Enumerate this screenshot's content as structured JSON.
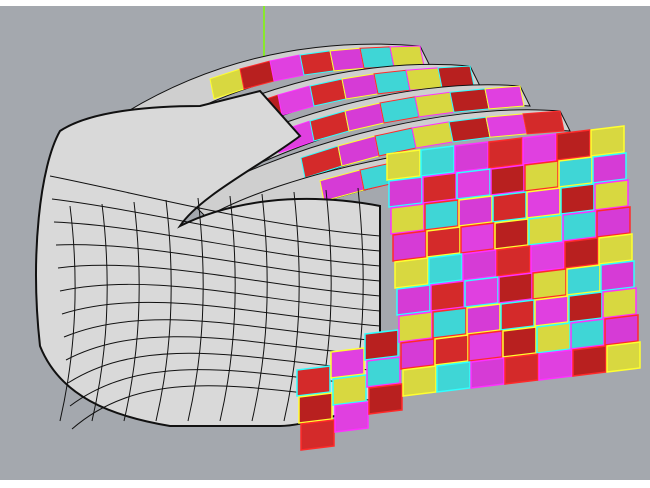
{
  "viewport": {
    "background": "#a4a8ae",
    "surface_color": "#d9d9d9",
    "edge_color": "#111111",
    "axis_color": "#7fff00"
  },
  "panel_palette": [
    "#d42a2a",
    "#d63bd6",
    "#3fd6d6",
    "#d8d840",
    "#b8201f",
    "#e040e0"
  ],
  "panel_outline_palette": [
    "#ff2a2a",
    "#ff30ff",
    "#30ffff",
    "#ffff30"
  ]
}
